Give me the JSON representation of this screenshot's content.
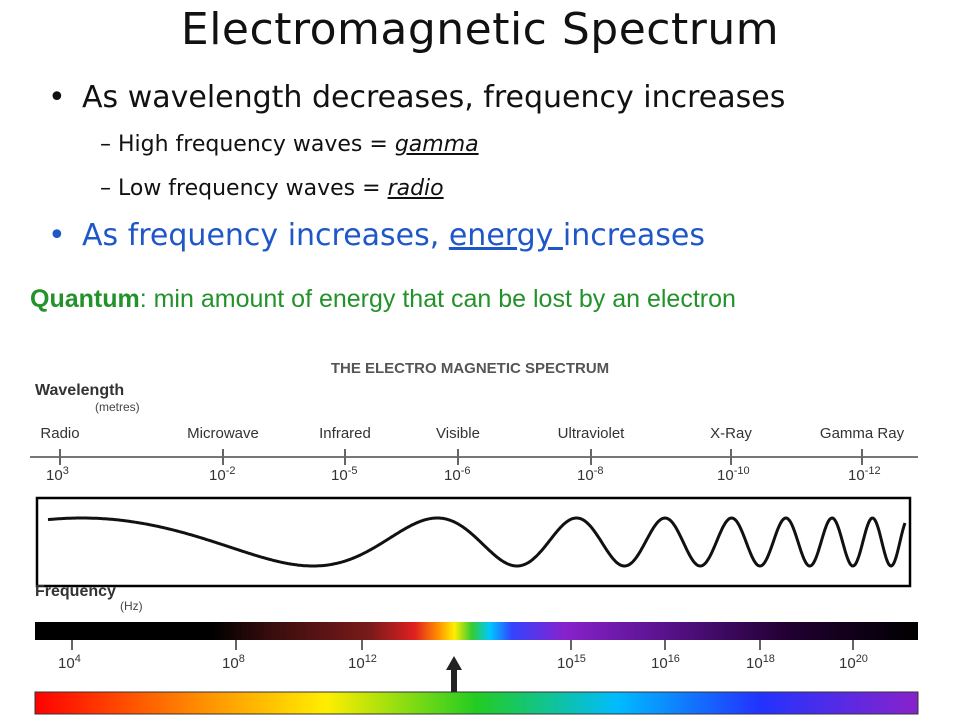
{
  "slide": {
    "title": "Electromagnetic Spectrum",
    "bullet1": "As wavelength decreases, frequency increases",
    "sub1_prefix": "– High frequency waves = ",
    "sub1_term": "gamma",
    "sub2_prefix": "– Low frequency waves = ",
    "sub2_term": "radio",
    "bullet2_prefix": "As frequency increases, ",
    "bullet2_term": "energy ",
    "bullet2_suffix": "increases",
    "quantum_term": "Quantum",
    "quantum_text": ": min amount of energy that can be lost by an electron"
  },
  "diagram": {
    "title": "THE ELECTRO MAGNETIC SPECTRUM",
    "wavelength_label": "Wavelength",
    "wavelength_unit": "(metres)",
    "frequency_label": "Frequency",
    "frequency_unit": "(Hz)",
    "bands": [
      "Radio",
      "Microwave",
      "Infrared",
      "Visible",
      "Ultraviolet",
      "X-Ray",
      "Gamma Ray"
    ],
    "wavelength_ticks": [
      {
        "base": "10",
        "exp": "3"
      },
      {
        "base": "10",
        "exp": "-2"
      },
      {
        "base": "10",
        "exp": "-5"
      },
      {
        "base": "10",
        "exp": "-6"
      },
      {
        "base": "10",
        "exp": "-8"
      },
      {
        "base": "10",
        "exp": "-10"
      },
      {
        "base": "10",
        "exp": "-12"
      }
    ],
    "frequency_ticks": [
      {
        "base": "10",
        "exp": "4"
      },
      {
        "base": "10",
        "exp": "8"
      },
      {
        "base": "10",
        "exp": "12"
      },
      {
        "base": "10",
        "exp": "15"
      },
      {
        "base": "10",
        "exp": "16"
      },
      {
        "base": "10",
        "exp": "18"
      },
      {
        "base": "10",
        "exp": "20"
      }
    ],
    "colors": {
      "accent_blue": "#1f57c8",
      "quantum_green": "#22922a",
      "bar_dark": "#000000"
    }
  }
}
